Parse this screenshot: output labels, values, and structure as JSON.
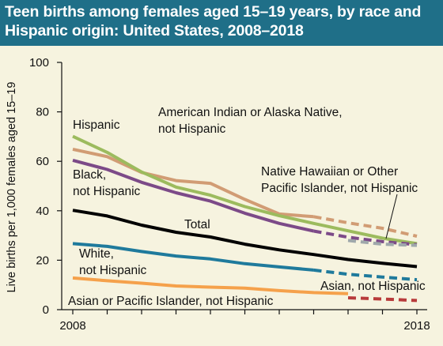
{
  "title_lines": [
    "Teen births among females aged 15–19 years, by race and",
    "Hispanic origin: United States, 2008–2018"
  ],
  "chart_data": {
    "type": "line",
    "ylabel": "Live births per 1,000 females aged 15–19",
    "xlabel": "",
    "ylim": [
      0,
      100
    ],
    "y_ticks": [
      "0",
      "20",
      "40",
      "60",
      "80",
      "100"
    ],
    "x_range": [
      2008,
      2018
    ],
    "x_tick_labels": [
      {
        "year": 2008,
        "label": "2008"
      },
      {
        "year": 2018,
        "label": "2018"
      }
    ],
    "grid": false,
    "series": [
      {
        "name": "American Indian or Alaska Native, not Hispanic",
        "label_lines": [
          "American Indian or Alaska Native,",
          "not Hispanic"
        ],
        "color": "#d19c74",
        "x": [
          2008,
          2009,
          2010,
          2011,
          2012,
          2013,
          2014,
          2015,
          2016,
          2017,
          2018
        ],
        "y": [
          64.9,
          61.9,
          55.5,
          52.2,
          51.1,
          44.6,
          38.7,
          37.6,
          35.1,
          32.9,
          29.7
        ],
        "dashed_from": 2015
      },
      {
        "name": "Hispanic",
        "label_lines": [
          "Hispanic"
        ],
        "color": "#9cbb5e",
        "x": [
          2008,
          2009,
          2010,
          2011,
          2012,
          2013,
          2014,
          2015,
          2016,
          2017,
          2018
        ],
        "y": [
          70.1,
          63.6,
          55.7,
          49.6,
          46.3,
          41.7,
          38.0,
          34.9,
          31.9,
          28.9,
          26.7
        ],
        "dashed_from": null
      },
      {
        "name": "Black, not Hispanic",
        "label_lines": [
          "Black,",
          "not Hispanic"
        ],
        "color": "#7c4a88",
        "x": [
          2008,
          2009,
          2010,
          2011,
          2012,
          2013,
          2014,
          2015,
          2016,
          2017,
          2018
        ],
        "y": [
          60.4,
          56.7,
          51.5,
          47.3,
          43.9,
          39.0,
          34.9,
          31.8,
          29.3,
          27.5,
          26.3
        ],
        "dashed_from": 2015
      },
      {
        "name": "Native Hawaiian or Other Pacific Islander, not Hispanic",
        "label_lines": [
          "Native Hawaiian or Other",
          "Pacific Islander, not Hispanic"
        ],
        "color": "#9fa8ab",
        "x": [
          2016,
          2017,
          2018
        ],
        "y": [
          28.0,
          26.5,
          26.0
        ],
        "dashed_from": 2016
      },
      {
        "name": "Total",
        "label_lines": [
          "Total"
        ],
        "color": "#000000",
        "x": [
          2008,
          2009,
          2010,
          2011,
          2012,
          2013,
          2014,
          2015,
          2016,
          2017,
          2018
        ],
        "y": [
          40.2,
          37.9,
          34.2,
          31.3,
          29.4,
          26.5,
          24.2,
          22.3,
          20.3,
          18.8,
          17.4
        ],
        "dashed_from": null
      },
      {
        "name": "White, not Hispanic",
        "label_lines": [
          "White,",
          "not Hispanic"
        ],
        "color": "#1f7a9c",
        "x": [
          2008,
          2009,
          2010,
          2011,
          2012,
          2013,
          2014,
          2015,
          2016,
          2017,
          2018
        ],
        "y": [
          26.7,
          25.6,
          23.5,
          21.7,
          20.5,
          18.6,
          17.3,
          16.0,
          14.3,
          13.2,
          12.1
        ],
        "dashed_from": 2015
      },
      {
        "name": "Asian or Pacific Islander, not Hispanic",
        "label_lines": [
          "Asian or Pacific Islander, not Hispanic"
        ],
        "color": "#f5a14b",
        "x": [
          2008,
          2009,
          2010,
          2011,
          2012,
          2013,
          2014,
          2015,
          2016
        ],
        "y": [
          12.8,
          11.7,
          10.7,
          9.6,
          9.1,
          8.7,
          7.7,
          6.9,
          6.5
        ],
        "dashed_from": null
      },
      {
        "name": "Asian, not Hispanic",
        "label_lines": [
          "Asian, not Hispanic"
        ],
        "color": "#b83b3b",
        "x": [
          2016,
          2017,
          2018
        ],
        "y": [
          4.8,
          4.3,
          3.7
        ],
        "dashed_from": 2016
      }
    ]
  }
}
